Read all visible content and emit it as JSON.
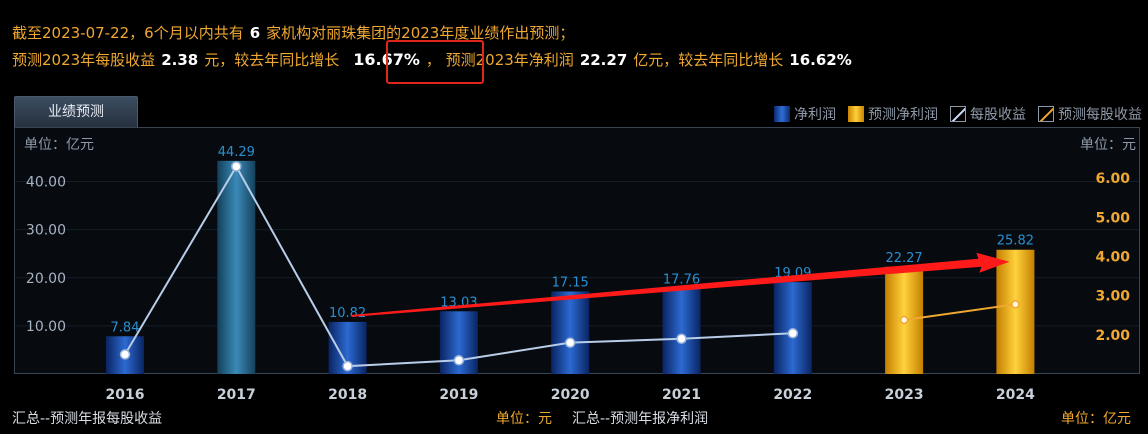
{
  "summary": {
    "line1": {
      "p1": "截至2023-07-22，6个月以内共有",
      "count": "6",
      "p2": "家机构对丽珠集团的2023年度业绩作出预测；"
    },
    "line2": {
      "p1": "预测2023年每股收益",
      "eps": "2.38",
      "p2": "元，较去年同比增长",
      "eps_growth": "16.67%",
      "p3": "， 预测2023年净利润",
      "profit": "22.27",
      "p4": "亿元，较去年同比增长",
      "profit_growth": "16.62%"
    }
  },
  "tab_label": "业绩预测",
  "legend": [
    {
      "label": "净利润",
      "swatch": "net"
    },
    {
      "label": "预测净利润",
      "swatch": "fnet"
    },
    {
      "label": "每股收益",
      "swatch": "eps"
    },
    {
      "label": "预测每股收益",
      "swatch": "feps"
    }
  ],
  "footer": {
    "left": "汇总--预测年报每股收益",
    "mid_unit": "单位：元",
    "mid_label": "汇总--预测年报净利润",
    "right_unit": "单位：亿元"
  },
  "chart_data": {
    "type": "bar",
    "categories": [
      "2016",
      "2017",
      "2018",
      "2019",
      "2020",
      "2021",
      "2022",
      "2023",
      "2024"
    ],
    "series": [
      {
        "name": "净利润",
        "values": [
          7.84,
          44.29,
          10.82,
          13.03,
          17.15,
          17.76,
          19.09,
          null,
          null
        ]
      },
      {
        "name": "预测净利润",
        "values": [
          null,
          null,
          null,
          null,
          null,
          null,
          null,
          22.27,
          25.82
        ]
      },
      {
        "name": "每股收益",
        "values": [
          1.5,
          6.3,
          1.2,
          1.35,
          1.8,
          1.9,
          2.04,
          null,
          null
        ]
      },
      {
        "name": "预测每股收益",
        "values": [
          null,
          null,
          null,
          null,
          null,
          null,
          null,
          2.38,
          2.78
        ]
      }
    ],
    "left_axis": {
      "label": "单位：亿元",
      "ticks": [
        10,
        20,
        30,
        40
      ],
      "tick_labels": [
        "10.00",
        "20.00",
        "30.00",
        "40.00"
      ],
      "range": [
        0,
        48
      ]
    },
    "right_axis": {
      "label": "单位：元",
      "ticks": [
        2,
        3,
        4,
        5,
        6
      ],
      "tick_labels": [
        "2.00",
        "3.00",
        "4.00",
        "5.00",
        "6.00"
      ],
      "range": [
        1,
        6.9
      ]
    },
    "annotation": "red trend arrow from 2018 to 2024",
    "colors": {
      "bar": "#1e4fb0",
      "forecast_bar": "#f0a800",
      "eps_line": "#b8cde8",
      "forecast_eps_line": "#f0a830",
      "value_label": "#2a8fd0",
      "arrow": "#ff1a1a"
    }
  }
}
